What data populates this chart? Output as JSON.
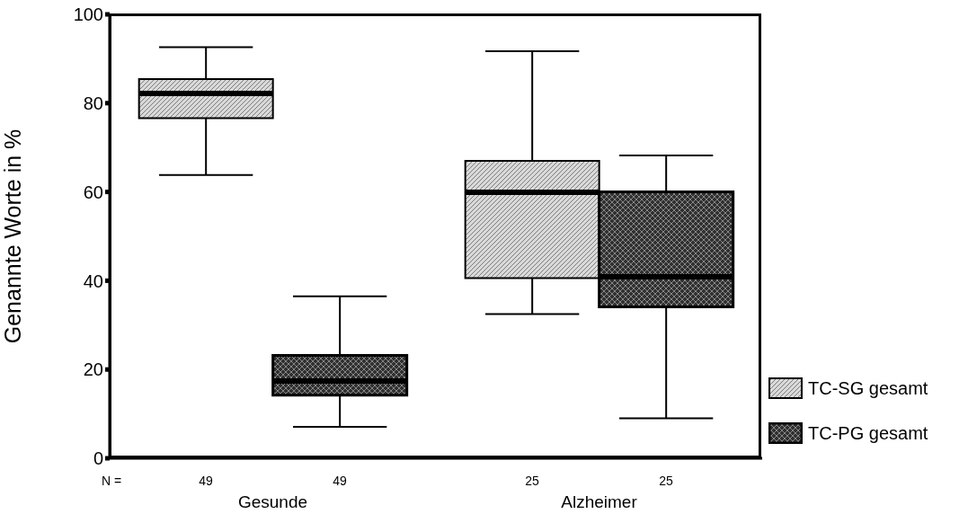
{
  "chart_data": {
    "type": "box",
    "ylabel": "Genannte Worte in %",
    "categories": [
      "Gesunde",
      "Alzheimer"
    ],
    "series": [
      {
        "name": "TC-SG gesamt",
        "color": "#d9d9d9",
        "boxes": [
          {
            "low": 63.8,
            "q1": 76.6,
            "median": 82.2,
            "q3": 85.4,
            "high": 92.6
          },
          {
            "low": 32.5,
            "q1": 40.6,
            "median": 59.9,
            "q3": 67,
            "high": 91.7
          }
        ]
      },
      {
        "name": "TC-PG gesamt",
        "color": "#303030",
        "boxes": [
          {
            "low": 7.1,
            "q1": 14.2,
            "median": 17.4,
            "q3": 23.2,
            "high": 36.5
          },
          {
            "low": 9,
            "q1": 34.1,
            "median": 40.9,
            "q3": 60,
            "high": 68.2
          }
        ]
      }
    ],
    "annotations": [
      "N =",
      "49",
      "49",
      "25",
      "25"
    ],
    "ylim": [
      0,
      100
    ],
    "yticks": [
      0,
      20,
      40,
      60,
      80,
      100
    ],
    "grid": false,
    "legend": "bottom right"
  }
}
